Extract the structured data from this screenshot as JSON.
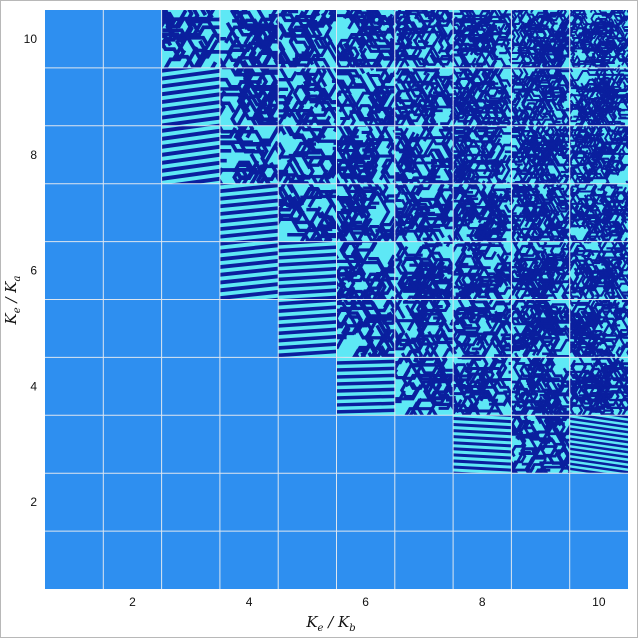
{
  "chart_data": {
    "type": "heatmap",
    "title": "",
    "x_axis": {
      "label_main": "K",
      "label_main_sub": "e",
      "label_sep": " / ",
      "label_den": "K",
      "label_den_sub": "b",
      "range": [
        0.5,
        10.5
      ],
      "ticks": [
        2,
        4,
        6,
        8,
        10
      ]
    },
    "y_axis": {
      "label_main": "K",
      "label_main_sub": "e",
      "label_sep": " / ",
      "label_den": "K",
      "label_den_sub": "a",
      "range": [
        0.5,
        10.5
      ],
      "ticks": [
        2,
        4,
        6,
        8,
        10
      ]
    },
    "grid": true,
    "colors": {
      "background_tile": "#2e8ff0",
      "stripe_dark": "#0a1f9e",
      "stripe_light": "#5ee8f5",
      "gridline": "#dde6f0"
    },
    "pattern_types": {
      "U": "uniform",
      "S": "parallel-stripes",
      "L": "labyrinth"
    },
    "cells": [
      {
        "y": 10,
        "row": "U U L L L L L L L L"
      },
      {
        "y": 9,
        "row": "U U S L L L L L L L"
      },
      {
        "y": 8,
        "row": "U U S L L L L L L L"
      },
      {
        "y": 7,
        "row": "U U U S L L L L L L"
      },
      {
        "y": 6,
        "row": "U U U S S L L L L L"
      },
      {
        "y": 5,
        "row": "U U U U S L L L L L"
      },
      {
        "y": 4,
        "row": "U U U U U S L L L L"
      },
      {
        "y": 3,
        "row": "U U U U U U U S L S"
      },
      {
        "y": 2,
        "row": "U U U U U U U U U U"
      },
      {
        "y": 1,
        "row": "U U U U U U U U U U"
      }
    ]
  }
}
